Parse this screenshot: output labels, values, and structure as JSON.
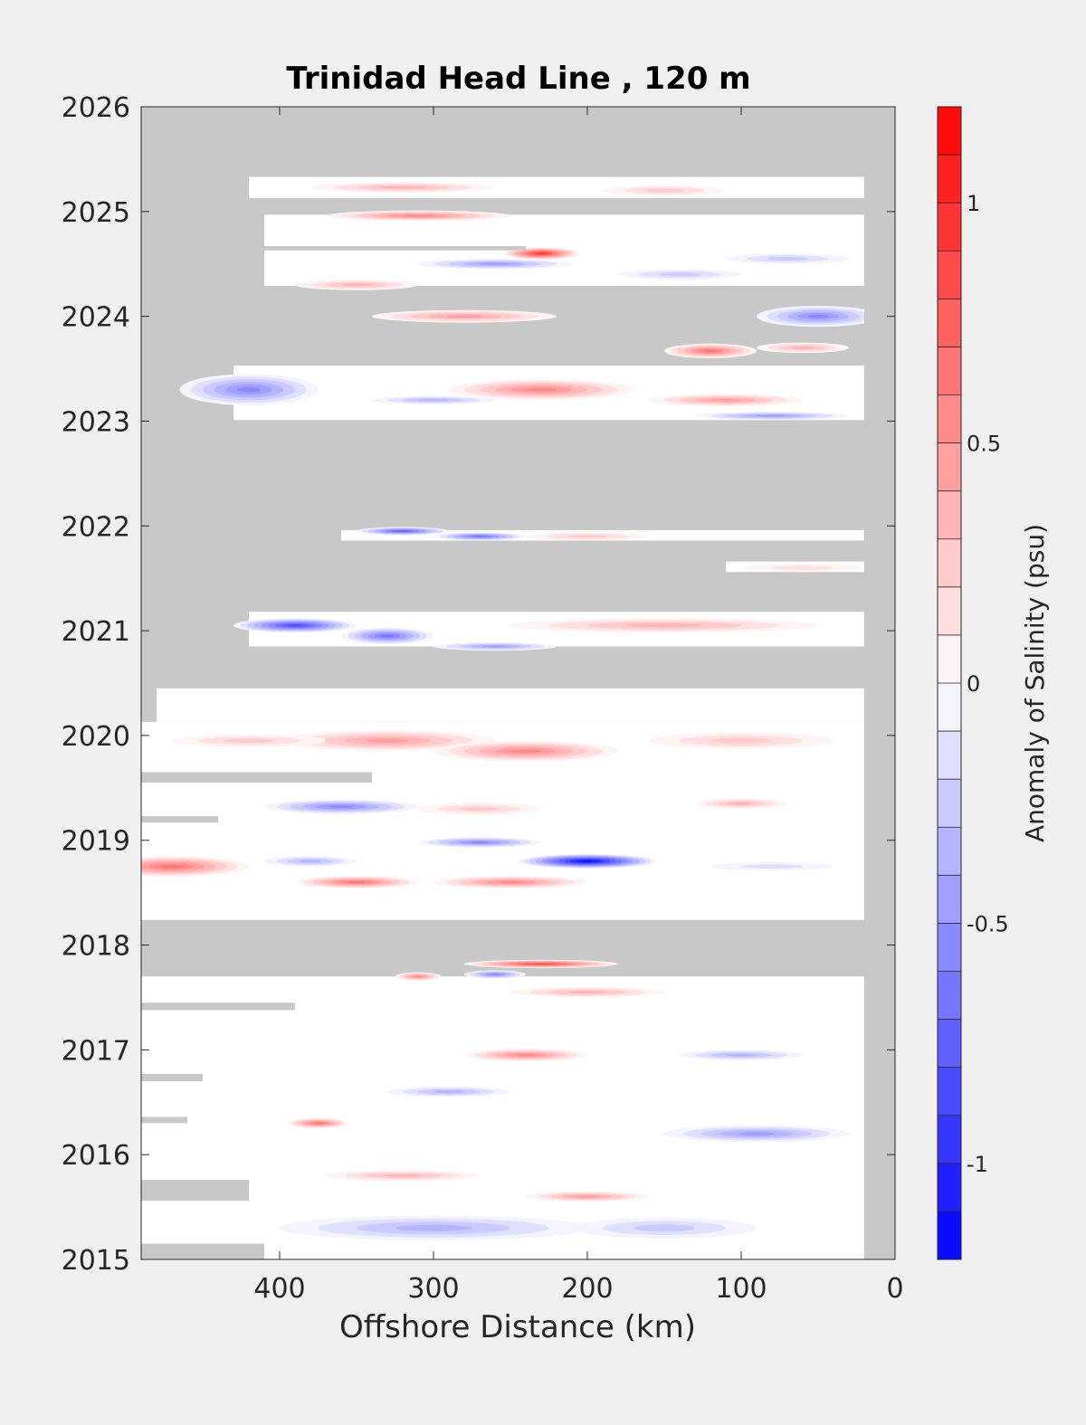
{
  "chart_data": {
    "type": "heatmap",
    "title": "Trinidad Head Line , 120 m",
    "xlabel": "Offshore Distance (km)",
    "ylabel": "",
    "colorbar_label": "Anomaly of Salinity (psu)",
    "x_reversed": true,
    "xlim": [
      490,
      0
    ],
    "ylim": [
      2015,
      2026
    ],
    "x_ticks": [
      400,
      300,
      200,
      100,
      0
    ],
    "y_ticks": [
      2015,
      2016,
      2017,
      2018,
      2019,
      2020,
      2021,
      2022,
      2023,
      2024,
      2025,
      2026
    ],
    "colorbar_ticks": [
      -1,
      -0.5,
      0,
      0.5,
      1
    ],
    "color_range": [
      -1.2,
      1.2
    ],
    "color_levels": 24,
    "colors": {
      "negative": "#0000ff",
      "zero": "#ffffff",
      "positive": "#ff0000",
      "no_data": "#c8c8c8",
      "background": "#f0f0f0"
    },
    "shore_gap_km": [
      0,
      20
    ],
    "data_rows": [
      {
        "y0": 2025.13,
        "y1": 2025.33,
        "x_max": 420
      },
      {
        "y0": 2024.29,
        "y1": 2024.97,
        "x_max": 410
      },
      {
        "y0": 2023.01,
        "y1": 2023.53,
        "x_max": 430
      },
      {
        "y0": 2021.86,
        "y1": 2021.96,
        "x_max": 360
      },
      {
        "y0": 2021.56,
        "y1": 2021.66,
        "x_max": 110
      },
      {
        "y0": 2020.85,
        "y1": 2021.18,
        "x_max": 420
      },
      {
        "y0": 2020.13,
        "y1": 2020.45,
        "x_max": 480
      },
      {
        "y0": 2018.24,
        "y1": 2020.13,
        "x_max": 490
      },
      {
        "y0": 2015.0,
        "y1": 2017.7,
        "x_max": 490
      }
    ],
    "gap_bands": [
      {
        "y0": 2019.55,
        "y1": 2019.65,
        "x_min": 340
      },
      {
        "y0": 2019.17,
        "y1": 2019.23,
        "x_min": 440
      },
      {
        "y0": 2017.38,
        "y1": 2017.45,
        "x_min": 390
      },
      {
        "y0": 2016.7,
        "y1": 2016.77,
        "x_min": 450
      },
      {
        "y0": 2016.3,
        "y1": 2016.36,
        "x_min": 460
      },
      {
        "y0": 2015.56,
        "y1": 2015.76,
        "x_min": 420
      },
      {
        "y0": 2015.0,
        "y1": 2015.15,
        "x_min": 410
      },
      {
        "y0": 2024.63,
        "y1": 2024.67,
        "x_min": 240
      },
      {
        "y0": 2023.7,
        "y1": 2023.85,
        "x_min": 200
      }
    ],
    "anomalies": [
      {
        "x": 230,
        "y": 2024.6,
        "rx": 25,
        "ry": 0.06,
        "value": 1.0
      },
      {
        "x": 310,
        "y": 2024.96,
        "rx": 60,
        "ry": 0.05,
        "value": 0.6
      },
      {
        "x": 320,
        "y": 2025.23,
        "rx": 60,
        "ry": 0.05,
        "value": 0.35
      },
      {
        "x": 150,
        "y": 2025.2,
        "rx": 40,
        "ry": 0.05,
        "value": 0.3
      },
      {
        "x": 260,
        "y": 2024.5,
        "rx": 50,
        "ry": 0.05,
        "value": -0.5
      },
      {
        "x": 140,
        "y": 2024.4,
        "rx": 40,
        "ry": 0.05,
        "value": -0.3
      },
      {
        "x": 70,
        "y": 2024.55,
        "rx": 40,
        "ry": 0.05,
        "value": -0.3
      },
      {
        "x": 50,
        "y": 2024.0,
        "rx": 40,
        "ry": 0.1,
        "value": -0.6
      },
      {
        "x": 280,
        "y": 2024.0,
        "rx": 60,
        "ry": 0.06,
        "value": 0.45
      },
      {
        "x": 350,
        "y": 2024.3,
        "rx": 40,
        "ry": 0.05,
        "value": 0.35
      },
      {
        "x": 120,
        "y": 2023.67,
        "rx": 30,
        "ry": 0.07,
        "value": 0.7
      },
      {
        "x": 60,
        "y": 2023.7,
        "rx": 30,
        "ry": 0.05,
        "value": 0.4
      },
      {
        "x": 420,
        "y": 2023.3,
        "rx": 45,
        "ry": 0.15,
        "value": -0.55
      },
      {
        "x": 230,
        "y": 2023.3,
        "rx": 60,
        "ry": 0.1,
        "value": 0.55
      },
      {
        "x": 110,
        "y": 2023.2,
        "rx": 50,
        "ry": 0.06,
        "value": 0.45
      },
      {
        "x": 300,
        "y": 2023.2,
        "rx": 40,
        "ry": 0.04,
        "value": -0.4
      },
      {
        "x": 80,
        "y": 2023.05,
        "rx": 50,
        "ry": 0.04,
        "value": -0.5
      },
      {
        "x": 320,
        "y": 2021.95,
        "rx": 30,
        "ry": 0.04,
        "value": -0.8
      },
      {
        "x": 270,
        "y": 2021.9,
        "rx": 30,
        "ry": 0.04,
        "value": -0.7
      },
      {
        "x": 200,
        "y": 2021.9,
        "rx": 40,
        "ry": 0.04,
        "value": 0.3
      },
      {
        "x": 60,
        "y": 2021.6,
        "rx": 40,
        "ry": 0.04,
        "value": 0.2
      },
      {
        "x": 390,
        "y": 2021.05,
        "rx": 40,
        "ry": 0.07,
        "value": -0.85
      },
      {
        "x": 330,
        "y": 2020.95,
        "rx": 30,
        "ry": 0.08,
        "value": -0.65
      },
      {
        "x": 260,
        "y": 2020.85,
        "rx": 40,
        "ry": 0.04,
        "value": -0.5
      },
      {
        "x": 150,
        "y": 2021.05,
        "rx": 100,
        "ry": 0.07,
        "value": 0.4
      },
      {
        "x": 330,
        "y": 2019.95,
        "rx": 70,
        "ry": 0.1,
        "value": 0.5
      },
      {
        "x": 240,
        "y": 2019.85,
        "rx": 60,
        "ry": 0.1,
        "value": 0.55
      },
      {
        "x": 420,
        "y": 2019.95,
        "rx": 50,
        "ry": 0.06,
        "value": 0.3
      },
      {
        "x": 100,
        "y": 2019.95,
        "rx": 60,
        "ry": 0.08,
        "value": 0.25
      },
      {
        "x": 360,
        "y": 2019.32,
        "rx": 50,
        "ry": 0.07,
        "value": -0.6
      },
      {
        "x": 270,
        "y": 2019.3,
        "rx": 40,
        "ry": 0.06,
        "value": 0.3
      },
      {
        "x": 100,
        "y": 2019.35,
        "rx": 30,
        "ry": 0.05,
        "value": 0.4
      },
      {
        "x": 270,
        "y": 2018.98,
        "rx": 40,
        "ry": 0.05,
        "value": -0.6
      },
      {
        "x": 200,
        "y": 2018.8,
        "rx": 45,
        "ry": 0.07,
        "value": -1.15
      },
      {
        "x": 470,
        "y": 2018.75,
        "rx": 50,
        "ry": 0.1,
        "value": 0.65
      },
      {
        "x": 350,
        "y": 2018.6,
        "rx": 40,
        "ry": 0.06,
        "value": 0.7
      },
      {
        "x": 250,
        "y": 2018.6,
        "rx": 50,
        "ry": 0.06,
        "value": 0.55
      },
      {
        "x": 380,
        "y": 2018.8,
        "rx": 30,
        "ry": 0.05,
        "value": -0.35
      },
      {
        "x": 80,
        "y": 2018.75,
        "rx": 40,
        "ry": 0.04,
        "value": -0.2
      },
      {
        "x": 230,
        "y": 2017.82,
        "rx": 50,
        "ry": 0.04,
        "value": 0.9
      },
      {
        "x": 260,
        "y": 2017.72,
        "rx": 20,
        "ry": 0.04,
        "value": -0.6
      },
      {
        "x": 310,
        "y": 2017.7,
        "rx": 15,
        "ry": 0.04,
        "value": 0.6
      },
      {
        "x": 200,
        "y": 2017.55,
        "rx": 50,
        "ry": 0.05,
        "value": 0.4
      },
      {
        "x": 240,
        "y": 2016.95,
        "rx": 40,
        "ry": 0.06,
        "value": 0.55
      },
      {
        "x": 100,
        "y": 2016.95,
        "rx": 40,
        "ry": 0.05,
        "value": -0.35
      },
      {
        "x": 290,
        "y": 2016.6,
        "rx": 40,
        "ry": 0.05,
        "value": -0.35
      },
      {
        "x": 375,
        "y": 2016.3,
        "rx": 20,
        "ry": 0.05,
        "value": 0.7
      },
      {
        "x": 90,
        "y": 2016.2,
        "rx": 60,
        "ry": 0.08,
        "value": -0.5
      },
      {
        "x": 320,
        "y": 2015.8,
        "rx": 50,
        "ry": 0.05,
        "value": 0.35
      },
      {
        "x": 200,
        "y": 2015.6,
        "rx": 40,
        "ry": 0.05,
        "value": 0.45
      },
      {
        "x": 300,
        "y": 2015.3,
        "rx": 100,
        "ry": 0.12,
        "value": -0.35
      },
      {
        "x": 150,
        "y": 2015.3,
        "rx": 60,
        "ry": 0.1,
        "value": -0.3
      }
    ]
  }
}
